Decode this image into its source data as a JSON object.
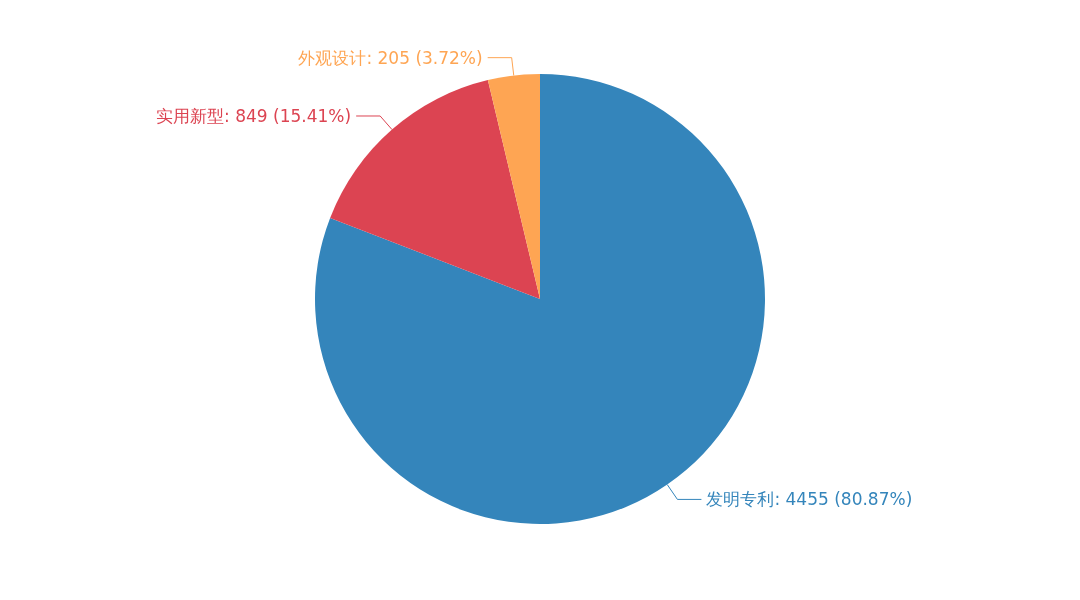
{
  "chart_data": {
    "type": "pie",
    "categories": [
      "发明专利",
      "实用新型",
      "外观设计"
    ],
    "values": [
      4455,
      849,
      205
    ],
    "colors": [
      "#3485bb",
      "#dc4452",
      "#fea553"
    ],
    "value_labels": [
      "4455 (80.87%)",
      "849 (15.41%)",
      "205 (3.72%)"
    ]
  }
}
